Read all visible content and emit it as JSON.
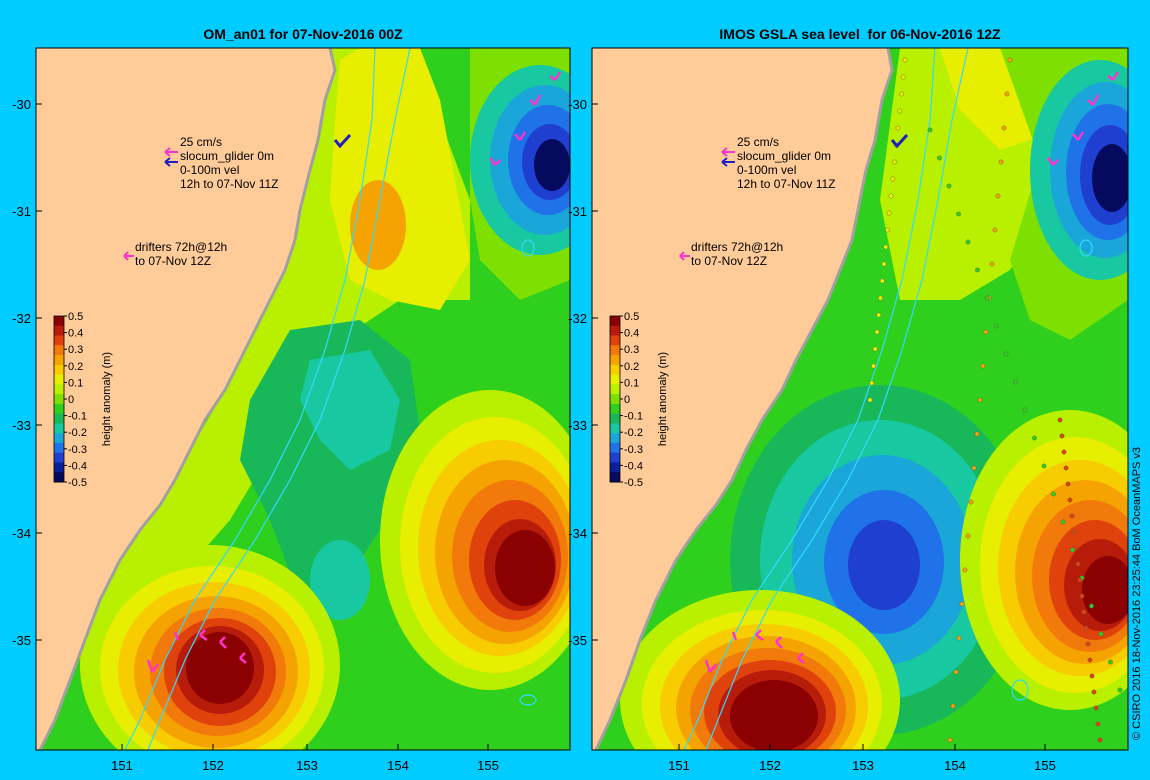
{
  "panels": [
    {
      "title": "OM_an01 for 07-Nov-2016 00Z",
      "legend": {
        "vector_scale": "25 cm/s",
        "glider": "slocum_glider 0m",
        "vel": "0-100m vel",
        "window": "12h to 07-Nov 11Z",
        "drifters_1": "drifters 72h@12h",
        "drifters_2": "to 07-Nov 12Z"
      }
    },
    {
      "title": "IMOS GSLA sea level  for 06-Nov-2016 12Z",
      "legend": {
        "vector_scale": "25 cm/s",
        "glider": "slocum_glider 0m",
        "vel": "0-100m vel",
        "window": "12h to 07-Nov 11Z",
        "drifters_1": "drifters 72h@12h",
        "drifters_2": "to 07-Nov 12Z"
      }
    }
  ],
  "axes": {
    "lat_ticks": [
      "-30",
      "-31",
      "-32",
      "-33",
      "-34",
      "-35"
    ],
    "lon_ticks": [
      "151",
      "152",
      "153",
      "154",
      "155"
    ]
  },
  "colorbar": {
    "label": "height anomaly (m)",
    "ticks": [
      "0.5",
      "0.4",
      "0.3",
      "0.2",
      "0.1",
      "0",
      "-0.1",
      "-0.2",
      "-0.3",
      "-0.4",
      "-0.5"
    ],
    "colors": [
      "#8b0000",
      "#b71c0a",
      "#e0420c",
      "#f27a0a",
      "#f5a300",
      "#f7cc00",
      "#e8ee00",
      "#b8f000",
      "#7ee000",
      "#2fcf1d",
      "#18b85a",
      "#17c8a0",
      "#1aa6d8",
      "#1f72e8",
      "#1f3fd1",
      "#0b1e9c",
      "#050a5e"
    ]
  },
  "colors": {
    "background": "#00ccff",
    "land": "#ffcc99",
    "coast": "#a0a0a0",
    "vector": "#ff33cc",
    "glider": "#2020c0",
    "isobath": "#33d9ff"
  },
  "credit": "© CSIRO 2016   18-Nov-2016 23:25:44 BoM OceanMAPS v3"
}
